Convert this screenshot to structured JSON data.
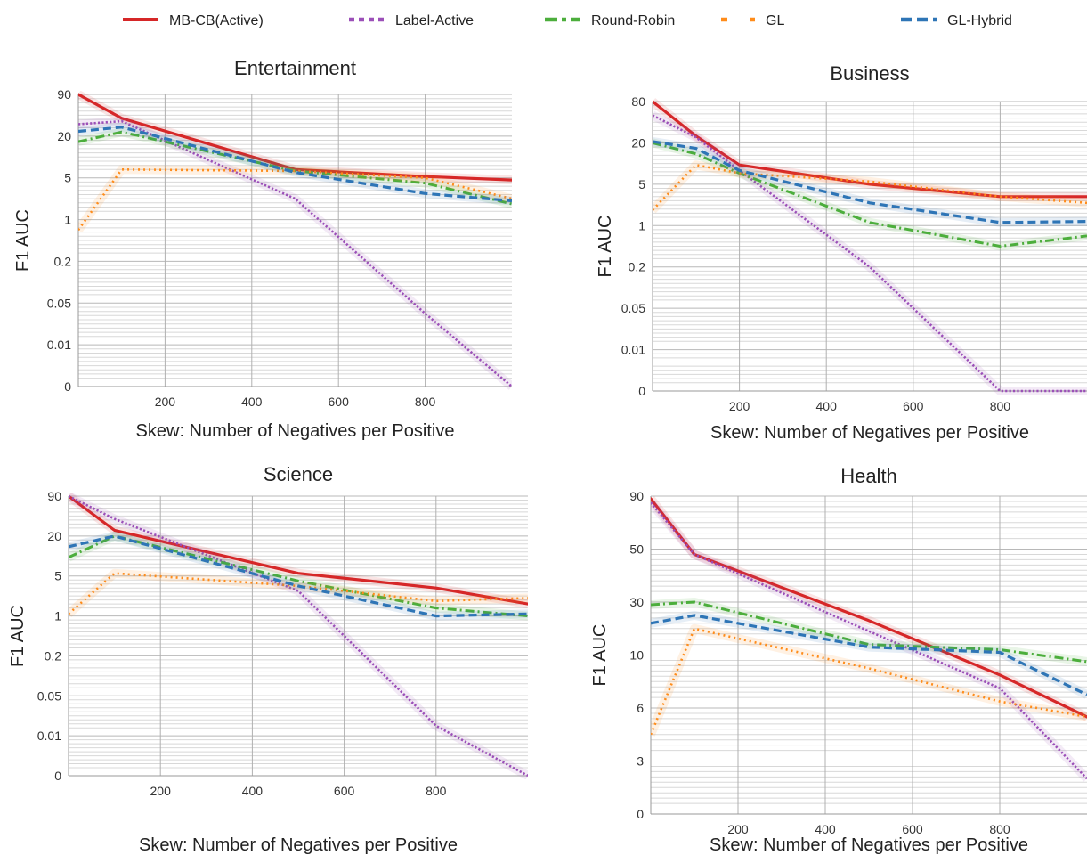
{
  "legend": {
    "items": [
      {
        "label": "MB-CB(Active)",
        "color": "#d62728",
        "dash": "solid"
      },
      {
        "label": "Label-Active",
        "color": "#9b4fb8",
        "dash": "dotted"
      },
      {
        "label": "Round-Robin",
        "color": "#4cae3c",
        "dash": "dashdot"
      },
      {
        "label": "GL",
        "color": "#ff8c1a",
        "dash": "dotted-sparse"
      },
      {
        "label": "GL-Hybrid",
        "color": "#2e75b6",
        "dash": "dashed"
      }
    ]
  },
  "chart_data": [
    {
      "type": "line",
      "title": "Entertainment",
      "xlabel": "Skew: Number of Negatives per Positive",
      "ylabel": "F1 AUC",
      "xlim": [
        0,
        1000
      ],
      "xticks": [
        200,
        400,
        600,
        800
      ],
      "yticks": [
        "0",
        "0.01",
        "0.05",
        "0.2",
        "1",
        "5",
        "20",
        "90"
      ],
      "ytick_values": [
        0,
        0.01,
        0.05,
        0.2,
        1,
        5,
        20,
        90
      ],
      "yscale": "symlog",
      "grid": true,
      "x": [
        0,
        100,
        500,
        800,
        1000
      ],
      "series": [
        {
          "name": "MB-CB(Active)",
          "values": [
            95,
            50,
            8,
            5.5,
            4.8
          ]
        },
        {
          "name": "Label-Active",
          "values": [
            40,
            45,
            3,
            0.04,
            0
          ]
        },
        {
          "name": "Round-Robin",
          "values": [
            18,
            27,
            7.5,
            4.5,
            2.5
          ]
        },
        {
          "name": "GL",
          "values": [
            0.8,
            8,
            7.5,
            5,
            3
          ]
        },
        {
          "name": "GL-Hybrid",
          "values": [
            28,
            35,
            7,
            3.5,
            2.8
          ]
        }
      ]
    },
    {
      "type": "line",
      "title": "Business",
      "xlabel": "Skew: Number of Negatives per Positive",
      "ylabel": "F1 AUC",
      "xlim": [
        0,
        1000
      ],
      "xticks": [
        200,
        400,
        600,
        800
      ],
      "yticks": [
        "0",
        "0.01",
        "0.05",
        "0.2",
        "1",
        "5",
        "20",
        "80"
      ],
      "ytick_values": [
        0,
        0.01,
        0.05,
        0.2,
        1,
        5,
        20,
        80
      ],
      "yscale": "symlog",
      "grid": true,
      "x": [
        0,
        100,
        200,
        500,
        800,
        1000
      ],
      "series": [
        {
          "name": "MB-CB(Active)",
          "values": [
            85,
            30,
            12,
            5,
            3.8,
            3.8
          ]
        },
        {
          "name": "Label-Active",
          "values": [
            60,
            28,
            10,
            0.2,
            0,
            0
          ]
        },
        {
          "name": "Round-Robin",
          "values": [
            20,
            16,
            9,
            1.3,
            0.6,
            0.8
          ]
        },
        {
          "name": "GL",
          "values": [
            2.5,
            12,
            9,
            6,
            3.8,
            3.2
          ]
        },
        {
          "name": "GL-Hybrid",
          "values": [
            22,
            18,
            10,
            3.2,
            1.3,
            1.4
          ]
        }
      ]
    },
    {
      "type": "line",
      "title": "Science",
      "xlabel": "Skew: Number of Negatives per Positive",
      "ylabel": "F1 AUC",
      "xlim": [
        0,
        1000
      ],
      "xticks": [
        200,
        400,
        600,
        800
      ],
      "yticks": [
        "0",
        "0.01",
        "0.05",
        "0.2",
        "1",
        "5",
        "20",
        "90"
      ],
      "ytick_values": [
        0,
        0.01,
        0.05,
        0.2,
        1,
        5,
        20,
        90
      ],
      "yscale": "symlog",
      "grid": true,
      "x": [
        0,
        100,
        500,
        800,
        1000
      ],
      "series": [
        {
          "name": "MB-CB(Active)",
          "values": [
            95,
            30,
            6,
            3.8,
            2.2
          ]
        },
        {
          "name": "Label-Active",
          "values": [
            90,
            50,
            3.5,
            0.02,
            0
          ]
        },
        {
          "name": "Round-Robin",
          "values": [
            12,
            20,
            4.5,
            1.8,
            1
          ]
        },
        {
          "name": "GL",
          "values": [
            1.2,
            6,
            4,
            2.5,
            2.8
          ]
        },
        {
          "name": "GL-Hybrid",
          "values": [
            16,
            20,
            4,
            1,
            1.2
          ]
        }
      ]
    },
    {
      "type": "line",
      "title": "Health",
      "xlabel": "Skew: Number of Negatives per Positive",
      "ylabel": "F1 AUC",
      "xlim": [
        0,
        1000
      ],
      "xticks": [
        200,
        400,
        600,
        800
      ],
      "yticks": [
        "0",
        "3",
        "6",
        "10",
        "30",
        "50",
        "90"
      ],
      "ytick_values": [
        0,
        3,
        6,
        10,
        30,
        50,
        90
      ],
      "yscale": "symlog",
      "grid": true,
      "x": [
        0,
        100,
        500,
        800,
        1000
      ],
      "series": [
        {
          "name": "MB-CB(Active)",
          "values": [
            88,
            48,
            23,
            8.5,
            5.5
          ]
        },
        {
          "name": "Label-Active",
          "values": [
            85,
            48,
            19,
            7.5,
            2
          ]
        },
        {
          "name": "Round-Robin",
          "values": [
            29,
            30,
            14,
            12,
            9.5
          ]
        },
        {
          "name": "GL",
          "values": [
            4.5,
            20,
            9,
            6.5,
            5.5
          ]
        },
        {
          "name": "GL-Hybrid",
          "values": [
            22,
            25,
            13,
            11,
            7
          ]
        }
      ]
    }
  ]
}
